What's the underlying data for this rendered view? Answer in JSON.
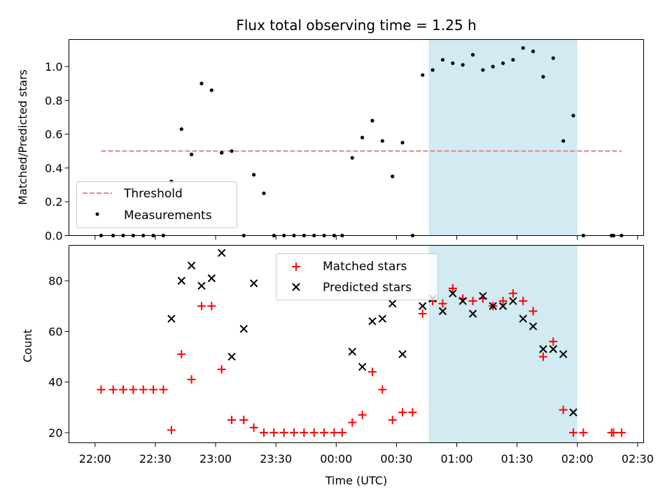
{
  "title": "Flux total observing time = 1.25 h",
  "xlabel": "Time (UTC)",
  "colors": {
    "threshold": "#f08080",
    "measurements": "#000000",
    "matched": "#ff0000",
    "predicted": "#000000",
    "observing_span": "#add8e6"
  },
  "chart_data": [
    {
      "type": "scatter",
      "panel": "top",
      "ylabel": "Matched/Predicted stars",
      "xlim": [
        "21:47",
        "02:33"
      ],
      "ylim": [
        0,
        1.16
      ],
      "yticks": [
        0.0,
        0.2,
        0.4,
        0.6,
        0.8,
        1.0
      ],
      "ytick_labels": [
        "0.0",
        "0.2",
        "0.4",
        "0.6",
        "0.8",
        "1.0"
      ],
      "xticks": [
        "22:00",
        "22:30",
        "23:00",
        "23:30",
        "00:00",
        "00:30",
        "01:00",
        "01:30",
        "02:00",
        "02:30"
      ],
      "legend_position": "lower-left",
      "shaded_span": [
        "00:46",
        "02:00"
      ],
      "threshold": {
        "name": "Threshold",
        "value": 0.5,
        "x_range": [
          "22:03",
          "02:22"
        ]
      },
      "series": [
        {
          "name": "Measurements",
          "x": [
            "22:03",
            "22:09",
            "22:14",
            "22:19",
            "22:24",
            "22:29",
            "22:34",
            "22:38",
            "22:43",
            "22:48",
            "22:53",
            "22:58",
            "23:03",
            "23:08",
            "23:14",
            "23:19",
            "23:24",
            "23:29",
            "23:34",
            "23:39",
            "23:44",
            "23:49",
            "23:54",
            "23:59",
            "00:03",
            "00:08",
            "00:13",
            "00:18",
            "00:23",
            "00:28",
            "00:33",
            "00:38",
            "00:43",
            "00:48",
            "00:53",
            "00:58",
            "01:03",
            "01:08",
            "01:13",
            "01:18",
            "01:23",
            "01:28",
            "01:33",
            "01:38",
            "01:43",
            "01:48",
            "01:53",
            "01:58",
            "02:03",
            "02:17",
            "02:18",
            "02:22"
          ],
          "y": [
            0.0,
            0.0,
            0.0,
            0.0,
            0.0,
            0.0,
            0.0,
            0.32,
            0.63,
            0.48,
            0.9,
            0.86,
            0.49,
            0.5,
            0.0,
            0.36,
            0.25,
            0.0,
            0.0,
            0.0,
            0.0,
            0.0,
            0.0,
            0.0,
            0.0,
            0.46,
            0.58,
            0.68,
            0.56,
            0.35,
            0.55,
            0.0,
            0.95,
            0.98,
            1.04,
            1.02,
            1.01,
            1.07,
            0.98,
            1.0,
            1.02,
            1.04,
            1.11,
            1.09,
            0.94,
            1.05,
            0.56,
            0.71,
            0.0,
            0.0,
            0.0,
            0.0
          ]
        }
      ]
    },
    {
      "type": "scatter",
      "panel": "bottom",
      "ylabel": "Count",
      "xlim": [
        "21:47",
        "02:33"
      ],
      "ylim": [
        16,
        94
      ],
      "yticks": [
        20,
        40,
        60,
        80
      ],
      "ytick_labels": [
        "20",
        "40",
        "60",
        "80"
      ],
      "xticks": [
        "22:00",
        "22:30",
        "23:00",
        "23:30",
        "00:00",
        "00:30",
        "01:00",
        "01:30",
        "02:00",
        "02:30"
      ],
      "legend_position": "upper-center",
      "shaded_span": [
        "00:46",
        "02:00"
      ],
      "series": [
        {
          "name": "Matched stars",
          "marker": "+",
          "x": [
            "22:03",
            "22:09",
            "22:14",
            "22:19",
            "22:24",
            "22:29",
            "22:34",
            "22:38",
            "22:43",
            "22:48",
            "22:53",
            "22:58",
            "23:03",
            "23:08",
            "23:14",
            "23:19",
            "23:24",
            "23:29",
            "23:34",
            "23:39",
            "23:44",
            "23:49",
            "23:54",
            "23:59",
            "00:03",
            "00:08",
            "00:13",
            "00:18",
            "00:23",
            "00:28",
            "00:33",
            "00:38",
            "00:43",
            "00:48",
            "00:53",
            "00:58",
            "01:03",
            "01:08",
            "01:13",
            "01:18",
            "01:23",
            "01:28",
            "01:33",
            "01:38",
            "01:43",
            "01:48",
            "01:53",
            "01:58",
            "02:03",
            "02:17",
            "02:18",
            "02:22"
          ],
          "y": [
            37,
            37,
            37,
            37,
            37,
            37,
            37,
            21,
            51,
            41,
            70,
            70,
            45,
            25,
            25,
            22,
            20,
            20,
            20,
            20,
            20,
            20,
            20,
            20,
            20,
            24,
            27,
            44,
            37,
            25,
            28,
            28,
            67,
            72,
            71,
            77,
            73,
            72,
            73,
            70,
            72,
            75,
            72,
            68,
            50,
            56,
            29,
            20,
            20,
            20,
            20,
            20
          ]
        },
        {
          "name": "Predicted stars",
          "marker": "x",
          "x": [
            "22:38",
            "22:43",
            "22:48",
            "22:53",
            "22:58",
            "23:03",
            "23:08",
            "23:14",
            "23:19",
            "00:08",
            "00:13",
            "00:18",
            "00:23",
            "00:28",
            "00:33",
            "00:43",
            "00:48",
            "00:53",
            "00:58",
            "01:03",
            "01:08",
            "01:13",
            "01:18",
            "01:23",
            "01:28",
            "01:33",
            "01:38",
            "01:43",
            "01:48",
            "01:53",
            "01:58"
          ],
          "y": [
            65,
            80,
            86,
            78,
            81,
            91,
            50,
            61,
            79,
            52,
            46,
            64,
            65,
            71,
            51,
            70,
            73,
            68,
            75,
            72,
            67,
            74,
            70,
            70,
            72,
            65,
            62,
            53,
            53,
            51,
            28
          ]
        }
      ]
    }
  ]
}
